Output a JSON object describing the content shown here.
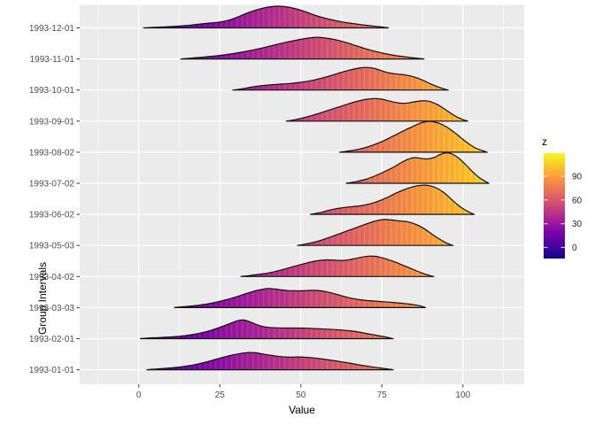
{
  "chart_data": {
    "type": "ridgeline-density",
    "title": "",
    "xlabel": "Value",
    "ylabel": "Group Intervals",
    "x_ticks": [
      0,
      25,
      50,
      75,
      100
    ],
    "x_minor_ticks": [
      -12.5,
      12.5,
      37.5,
      62.5,
      87.5,
      112.5
    ],
    "x_range": [
      -18,
      119
    ],
    "grid": "on",
    "legend": {
      "title": "z",
      "ticks": [
        0,
        30,
        60,
        90
      ],
      "range": [
        -14,
        119
      ],
      "position": "right",
      "colormap": "plasma"
    },
    "colors": {
      "panel_bg": "#ebebeb",
      "grid_major": "#ffffff",
      "grid_minor": "#ffffff",
      "ridge_outline": "#111111",
      "tick_mark": "#333333",
      "tick_label": "#4d4d4d",
      "legend_label": "#262626",
      "plasma_stops": [
        {
          "f": 0.0,
          "c": "#0d0887"
        },
        {
          "f": 0.125,
          "c": "#4c02a1"
        },
        {
          "f": 0.25,
          "c": "#7e03a8"
        },
        {
          "f": 0.375,
          "c": "#a82296"
        },
        {
          "f": 0.5,
          "c": "#cb4679"
        },
        {
          "f": 0.625,
          "c": "#e56b5d"
        },
        {
          "f": 0.75,
          "c": "#f89441"
        },
        {
          "f": 0.875,
          "c": "#fdc328"
        },
        {
          "f": 1.0,
          "c": "#f0f921"
        }
      ]
    },
    "groups": [
      {
        "label": "1993-12-01",
        "points": [
          [
            1.5,
            0
          ],
          [
            6,
            0.8
          ],
          [
            10,
            1.5
          ],
          [
            14,
            2.5
          ],
          [
            18,
            4
          ],
          [
            22,
            5.5
          ],
          [
            25,
            6.5
          ],
          [
            28,
            9
          ],
          [
            31,
            13
          ],
          [
            34,
            17.5
          ],
          [
            37,
            21
          ],
          [
            40,
            23.5
          ],
          [
            43,
            24.5
          ],
          [
            46,
            23.5
          ],
          [
            49,
            21
          ],
          [
            52,
            17.5
          ],
          [
            55,
            13.5
          ],
          [
            58,
            10.5
          ],
          [
            61,
            8
          ],
          [
            64,
            6
          ],
          [
            67,
            4.5
          ],
          [
            70,
            3
          ],
          [
            73,
            1.8
          ],
          [
            75.5,
            0.8
          ],
          [
            77,
            0
          ]
        ]
      },
      {
        "label": "1993-11-01",
        "points": [
          [
            13,
            0
          ],
          [
            17,
            1.2
          ],
          [
            21,
            2.5
          ],
          [
            25,
            4
          ],
          [
            29,
            6
          ],
          [
            33,
            8.5
          ],
          [
            37,
            11.5
          ],
          [
            41,
            15
          ],
          [
            45,
            18.5
          ],
          [
            49,
            21.5
          ],
          [
            52,
            23.5
          ],
          [
            55,
            24.5
          ],
          [
            58,
            23.5
          ],
          [
            61,
            21.5
          ],
          [
            64,
            18.5
          ],
          [
            67,
            15
          ],
          [
            70,
            11.5
          ],
          [
            73,
            8.5
          ],
          [
            76,
            6
          ],
          [
            79,
            4
          ],
          [
            82,
            2.5
          ],
          [
            85,
            1.2
          ],
          [
            88,
            0
          ]
        ]
      },
      {
        "label": "1993-10-01",
        "points": [
          [
            29,
            0
          ],
          [
            32,
            1.5
          ],
          [
            35,
            3.5
          ],
          [
            38,
            5
          ],
          [
            41,
            6
          ],
          [
            44,
            6.8
          ],
          [
            47,
            7.5
          ],
          [
            50,
            8.8
          ],
          [
            53,
            10.5
          ],
          [
            56,
            13
          ],
          [
            59,
            16
          ],
          [
            62,
            19.5
          ],
          [
            65,
            22.5
          ],
          [
            68,
            24.8
          ],
          [
            70,
            25.5
          ],
          [
            72,
            25
          ],
          [
            74,
            23
          ],
          [
            76,
            20.5
          ],
          [
            78,
            18.8
          ],
          [
            80,
            18
          ],
          [
            82,
            17.2
          ],
          [
            84,
            15.8
          ],
          [
            86,
            13.5
          ],
          [
            88,
            10.5
          ],
          [
            90,
            7
          ],
          [
            92,
            4
          ],
          [
            94,
            1.5
          ],
          [
            95.5,
            0
          ]
        ]
      },
      {
        "label": "1993-09-01",
        "points": [
          [
            45.5,
            0
          ],
          [
            48,
            1.5
          ],
          [
            51,
            4
          ],
          [
            54,
            7
          ],
          [
            57,
            10.5
          ],
          [
            60,
            14
          ],
          [
            63,
            17.5
          ],
          [
            66,
            21
          ],
          [
            69,
            23.8
          ],
          [
            71,
            25
          ],
          [
            73,
            25.5
          ],
          [
            75,
            24.8
          ],
          [
            77,
            23
          ],
          [
            79,
            21.2
          ],
          [
            81,
            20.2
          ],
          [
            83,
            20.5
          ],
          [
            85,
            21.8
          ],
          [
            87,
            22.8
          ],
          [
            88.5,
            23
          ],
          [
            90,
            22
          ],
          [
            92,
            19
          ],
          [
            94,
            14.5
          ],
          [
            96,
            9.5
          ],
          [
            98,
            5
          ],
          [
            100,
            1.8
          ],
          [
            101.5,
            0
          ]
        ]
      },
      {
        "label": "1993-08-02",
        "points": [
          [
            62,
            0
          ],
          [
            65,
            1.5
          ],
          [
            68,
            3.5
          ],
          [
            71,
            6.5
          ],
          [
            74,
            10.5
          ],
          [
            77,
            15.5
          ],
          [
            80,
            21
          ],
          [
            83,
            26.5
          ],
          [
            86,
            31.5
          ],
          [
            88,
            34
          ],
          [
            90,
            34.8
          ],
          [
            92,
            33.5
          ],
          [
            94,
            30.5
          ],
          [
            96,
            26
          ],
          [
            98,
            20.5
          ],
          [
            100,
            14.5
          ],
          [
            102,
            9
          ],
          [
            104,
            4.5
          ],
          [
            106,
            1.8
          ],
          [
            107.5,
            0
          ]
        ]
      },
      {
        "label": "1993-07-02",
        "points": [
          [
            64,
            0
          ],
          [
            67,
            1.8
          ],
          [
            70,
            4.5
          ],
          [
            73,
            8.5
          ],
          [
            76,
            13.5
          ],
          [
            79,
            19
          ],
          [
            81,
            23.5
          ],
          [
            83,
            27
          ],
          [
            85,
            29
          ],
          [
            87,
            28.2
          ],
          [
            89,
            27.5
          ],
          [
            91,
            29
          ],
          [
            93,
            32.5
          ],
          [
            95,
            34.5
          ],
          [
            97,
            32.5
          ],
          [
            99,
            27.5
          ],
          [
            101,
            20.5
          ],
          [
            103,
            13
          ],
          [
            105,
            6.5
          ],
          [
            107,
            2
          ],
          [
            108,
            0
          ]
        ]
      },
      {
        "label": "1993-06-02",
        "points": [
          [
            53,
            0
          ],
          [
            56,
            2
          ],
          [
            58,
            4
          ],
          [
            60,
            5.8
          ],
          [
            62,
            7
          ],
          [
            64,
            8
          ],
          [
            66,
            8.8
          ],
          [
            68,
            9.5
          ],
          [
            70,
            10.8
          ],
          [
            72,
            12.5
          ],
          [
            74,
            15
          ],
          [
            76,
            18
          ],
          [
            78,
            21.5
          ],
          [
            80,
            25
          ],
          [
            82,
            28
          ],
          [
            84,
            30.5
          ],
          [
            86,
            32.2
          ],
          [
            88,
            33
          ],
          [
            90,
            32.2
          ],
          [
            92,
            29.5
          ],
          [
            94,
            25
          ],
          [
            96,
            18.5
          ],
          [
            98,
            12
          ],
          [
            100,
            6.5
          ],
          [
            102,
            2.5
          ],
          [
            103.5,
            0
          ]
        ]
      },
      {
        "label": "1993-05-03",
        "points": [
          [
            49,
            0
          ],
          [
            52,
            2
          ],
          [
            55,
            4.5
          ],
          [
            58,
            8
          ],
          [
            61,
            12
          ],
          [
            64,
            16
          ],
          [
            67,
            20
          ],
          [
            70,
            24
          ],
          [
            72,
            26.5
          ],
          [
            74,
            28.5
          ],
          [
            76,
            29.3
          ],
          [
            78,
            28.8
          ],
          [
            80,
            27.8
          ],
          [
            82,
            27.2
          ],
          [
            84,
            25.8
          ],
          [
            86,
            23
          ],
          [
            88,
            19
          ],
          [
            90,
            14
          ],
          [
            92,
            9
          ],
          [
            94,
            4.5
          ],
          [
            96,
            1.2
          ],
          [
            97,
            0
          ]
        ]
      },
      {
        "label": "1993-04-02",
        "points": [
          [
            31.5,
            0
          ],
          [
            34,
            1
          ],
          [
            37,
            2.5
          ],
          [
            40,
            4
          ],
          [
            43,
            6.5
          ],
          [
            46,
            9.5
          ],
          [
            49,
            12.5
          ],
          [
            52,
            15.5
          ],
          [
            55,
            17.8
          ],
          [
            58,
            18.8
          ],
          [
            61,
            18.3
          ],
          [
            63,
            18.2
          ],
          [
            65,
            19
          ],
          [
            67,
            20.5
          ],
          [
            69,
            22
          ],
          [
            71,
            23
          ],
          [
            73,
            22.8
          ],
          [
            75,
            21.2
          ],
          [
            77,
            19
          ],
          [
            79,
            16.5
          ],
          [
            81,
            13.5
          ],
          [
            83,
            10.5
          ],
          [
            85,
            7.5
          ],
          [
            87,
            4.5
          ],
          [
            89,
            2
          ],
          [
            91,
            0
          ]
        ]
      },
      {
        "label": "1993-03-03",
        "points": [
          [
            11,
            0
          ],
          [
            14,
            1
          ],
          [
            17,
            2
          ],
          [
            20,
            3.5
          ],
          [
            23,
            5.5
          ],
          [
            26,
            8
          ],
          [
            29,
            11
          ],
          [
            32,
            14.5
          ],
          [
            35,
            18
          ],
          [
            38,
            20.5
          ],
          [
            40,
            21.5
          ],
          [
            42,
            21
          ],
          [
            44,
            20
          ],
          [
            46,
            19.2
          ],
          [
            48,
            19
          ],
          [
            50,
            19
          ],
          [
            52,
            19.3
          ],
          [
            54,
            19.5
          ],
          [
            56,
            19
          ],
          [
            58,
            17.8
          ],
          [
            60,
            16
          ],
          [
            62,
            14
          ],
          [
            64,
            12
          ],
          [
            66,
            10.3
          ],
          [
            68,
            9
          ],
          [
            71,
            7.8
          ],
          [
            74,
            7
          ],
          [
            77,
            6.2
          ],
          [
            80,
            5.3
          ],
          [
            83,
            4.2
          ],
          [
            85,
            3.2
          ],
          [
            87,
            1.8
          ],
          [
            88.5,
            0
          ]
        ]
      },
      {
        "label": "1993-02-01",
        "points": [
          [
            0.5,
            0
          ],
          [
            3,
            0.8
          ],
          [
            6,
            1.2
          ],
          [
            9,
            1.8
          ],
          [
            12,
            2.5
          ],
          [
            15,
            3.8
          ],
          [
            18,
            5.5
          ],
          [
            21,
            8
          ],
          [
            24,
            11.5
          ],
          [
            27,
            15.5
          ],
          [
            29.5,
            19
          ],
          [
            31,
            20.8
          ],
          [
            32.5,
            21
          ],
          [
            34,
            19.5
          ],
          [
            36,
            16.5
          ],
          [
            38,
            14
          ],
          [
            40,
            12.8
          ],
          [
            43,
            12.2
          ],
          [
            46,
            12
          ],
          [
            49,
            12
          ],
          [
            52,
            11.8
          ],
          [
            55,
            11.3
          ],
          [
            58,
            10.8
          ],
          [
            61,
            10.2
          ],
          [
            64,
            9.3
          ],
          [
            67,
            8
          ],
          [
            70,
            6
          ],
          [
            73,
            4
          ],
          [
            76,
            2
          ],
          [
            78.5,
            0
          ]
        ]
      },
      {
        "label": "1993-01-01",
        "points": [
          [
            2.5,
            0
          ],
          [
            5,
            0.8
          ],
          [
            8,
            1.5
          ],
          [
            11,
            2.5
          ],
          [
            14,
            3.8
          ],
          [
            17,
            5.5
          ],
          [
            20,
            8
          ],
          [
            23,
            11
          ],
          [
            26,
            14
          ],
          [
            29,
            16.8
          ],
          [
            32,
            18.8
          ],
          [
            34,
            19.5
          ],
          [
            36,
            19.2
          ],
          [
            38,
            18
          ],
          [
            41,
            16.2
          ],
          [
            44,
            14.8
          ],
          [
            47,
            14.3
          ],
          [
            49,
            14.5
          ],
          [
            51,
            14.3
          ],
          [
            53,
            13.8
          ],
          [
            56,
            12.5
          ],
          [
            59,
            11
          ],
          [
            62,
            9.3
          ],
          [
            65,
            7.5
          ],
          [
            68,
            5.5
          ],
          [
            71,
            3.8
          ],
          [
            74,
            2.2
          ],
          [
            77,
            0.8
          ],
          [
            78.5,
            0
          ]
        ]
      }
    ]
  }
}
